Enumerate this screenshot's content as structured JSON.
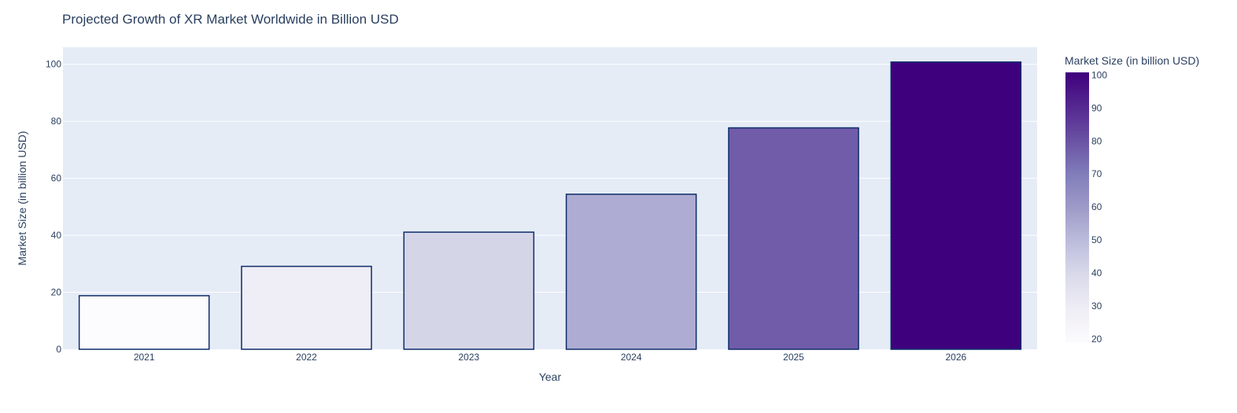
{
  "chart_data": {
    "type": "bar",
    "title": "Projected Growth of XR Market Worldwide in Billion USD",
    "xlabel": "Year",
    "ylabel": "Market Size (in billion USD)",
    "categories": [
      "2021",
      "2022",
      "2023",
      "2024",
      "2025",
      "2026"
    ],
    "values": [
      18.8,
      29.1,
      41.1,
      54.4,
      77.7,
      100.8
    ],
    "ylim": [
      0,
      106
    ],
    "yticks": [
      0,
      20,
      40,
      60,
      80,
      100
    ],
    "grid": true,
    "colorbar": {
      "title": "Market Size (in billion USD)",
      "range": [
        18.8,
        100.8
      ],
      "ticks": [
        20,
        30,
        40,
        50,
        60,
        70,
        80,
        90,
        100
      ],
      "colorscale": [
        "#fcfbfd",
        "#efedf5",
        "#dadaeb",
        "#bcbddc",
        "#9e9ac8",
        "#807dba",
        "#6a51a3",
        "#54278f",
        "#3f007d"
      ]
    },
    "colors": {
      "plot_background": "#e5ecf6",
      "bar_outline": "#0d2d6b",
      "text": "#2a3f5f"
    }
  }
}
